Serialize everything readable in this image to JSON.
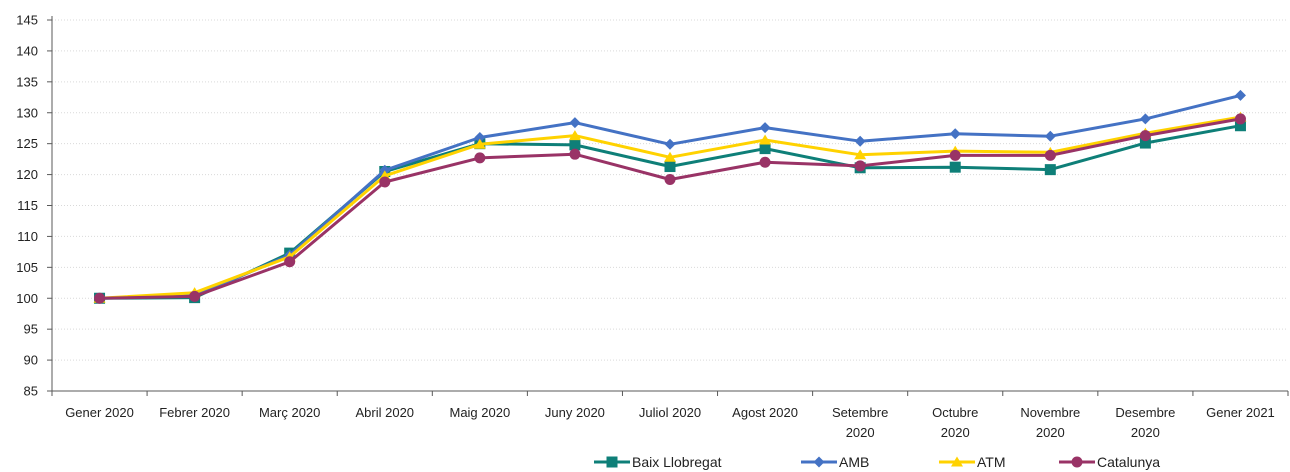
{
  "chart_data": {
    "type": "line",
    "title": "",
    "xlabel": "",
    "ylabel": "",
    "ylim": [
      85,
      145
    ],
    "ytick_step": 5,
    "grid": true,
    "legend_position": "bottom-right",
    "categories": [
      [
        "Gener 2020"
      ],
      [
        "Febrer 2020"
      ],
      [
        "Març 2020"
      ],
      [
        "Abril 2020"
      ],
      [
        "Maig 2020"
      ],
      [
        "Juny 2020"
      ],
      [
        "Juliol 2020"
      ],
      [
        "Agost 2020"
      ],
      [
        "Setembre",
        "2020"
      ],
      [
        "Octubre",
        "2020"
      ],
      [
        "Novembre",
        "2020"
      ],
      [
        "Desembre",
        "2020"
      ],
      [
        "Gener 2021"
      ]
    ],
    "series": [
      {
        "name": "Baix Llobregat",
        "color": "#0e7f78",
        "marker": "square",
        "values": [
          100.0,
          100.1,
          107.3,
          120.5,
          125.0,
          124.8,
          121.3,
          124.2,
          121.1,
          121.2,
          120.8,
          125.1,
          127.9
        ]
      },
      {
        "name": "AMB",
        "color": "#4472c4",
        "marker": "diamond",
        "values": [
          100.0,
          100.4,
          107.0,
          120.7,
          126.0,
          128.4,
          124.9,
          127.6,
          125.4,
          126.6,
          126.2,
          129.0,
          132.8
        ]
      },
      {
        "name": "ATM",
        "color": "#ffd200",
        "marker": "triangle",
        "values": [
          100.0,
          100.9,
          106.7,
          119.8,
          124.9,
          126.3,
          122.8,
          125.6,
          123.2,
          123.8,
          123.6,
          126.7,
          129.3
        ]
      },
      {
        "name": "Catalunya",
        "color": "#993366",
        "marker": "circle",
        "values": [
          100.0,
          100.3,
          105.9,
          118.8,
          122.7,
          123.3,
          119.2,
          122.0,
          121.4,
          123.1,
          123.1,
          126.3,
          129.0
        ]
      }
    ]
  }
}
